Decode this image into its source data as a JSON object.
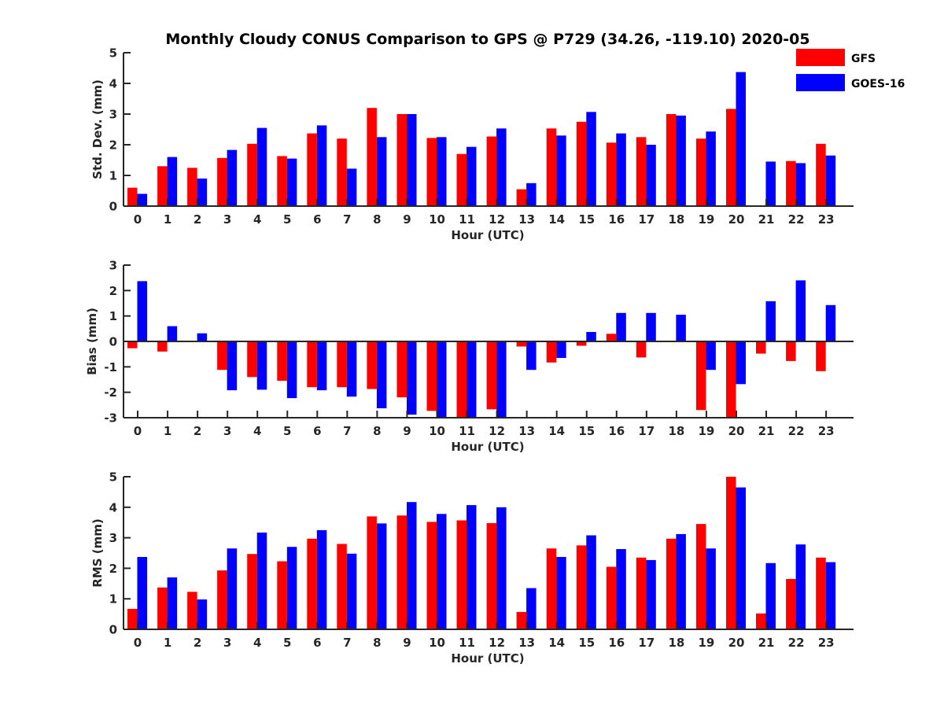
{
  "title": "Monthly Cloudy CONUS Comparison to GPS @ P729 (34.26, -119.10) 2020-05",
  "legend": [
    {
      "name": "GFS",
      "color": "#ff0000"
    },
    {
      "name": "GOES-16",
      "color": "#0000ff"
    }
  ],
  "chart_data": [
    {
      "type": "bar",
      "title": "Monthly Cloudy CONUS Comparison to GPS @ P729 (34.26, -119.10) 2020-05",
      "xlabel": "Hour (UTC)",
      "ylabel": "Std. Dev. (mm)",
      "ylim": [
        0,
        5
      ],
      "yticks": [
        0,
        1,
        2,
        3,
        4,
        5
      ],
      "legend_position": "top-right",
      "categories": [
        "0",
        "1",
        "2",
        "3",
        "4",
        "5",
        "6",
        "7",
        "8",
        "9",
        "10",
        "11",
        "12",
        "13",
        "14",
        "15",
        "16",
        "17",
        "18",
        "19",
        "20",
        "21",
        "22",
        "23"
      ],
      "series": [
        {
          "name": "GFS",
          "color": "#ff0000",
          "values": [
            0.6,
            1.3,
            1.25,
            1.57,
            2.03,
            1.63,
            2.37,
            2.2,
            3.2,
            3.0,
            2.22,
            1.7,
            2.27,
            0.55,
            2.53,
            2.75,
            2.07,
            2.25,
            3.0,
            2.2,
            3.17,
            0.02,
            1.47,
            2.03
          ]
        },
        {
          "name": "GOES-16",
          "color": "#0000ff",
          "values": [
            0.4,
            1.6,
            0.9,
            1.83,
            2.55,
            1.55,
            2.63,
            1.22,
            2.25,
            3.0,
            2.25,
            1.93,
            2.53,
            0.75,
            2.3,
            3.07,
            2.37,
            2.0,
            2.95,
            2.43,
            4.37,
            1.45,
            1.4,
            1.65
          ]
        }
      ]
    },
    {
      "type": "bar",
      "xlabel": "Hour (UTC)",
      "ylabel": "Bias (mm)",
      "ylim": [
        -3,
        3
      ],
      "yticks": [
        -3,
        -2,
        -1,
        0,
        1,
        2,
        3
      ],
      "categories": [
        "0",
        "1",
        "2",
        "3",
        "4",
        "5",
        "6",
        "7",
        "8",
        "9",
        "10",
        "11",
        "12",
        "13",
        "14",
        "15",
        "16",
        "17",
        "18",
        "19",
        "20",
        "21",
        "22",
        "23"
      ],
      "series": [
        {
          "name": "GFS",
          "color": "#ff0000",
          "values": [
            -0.27,
            -0.4,
            -0.03,
            -1.12,
            -1.4,
            -1.55,
            -1.8,
            -1.8,
            -1.87,
            -2.2,
            -2.73,
            -3.0,
            -2.67,
            -0.2,
            -0.83,
            -0.17,
            0.3,
            -0.63,
            -0.03,
            -2.7,
            -3.0,
            -0.48,
            -0.77,
            -1.17
          ]
        },
        {
          "name": "GOES-16",
          "color": "#0000ff",
          "values": [
            2.37,
            0.6,
            0.32,
            -1.92,
            -1.9,
            -2.23,
            -1.92,
            -2.17,
            -2.63,
            -2.88,
            -3.0,
            -3.0,
            -3.0,
            -1.12,
            -0.65,
            0.37,
            1.12,
            1.12,
            1.05,
            -1.12,
            -1.68,
            1.58,
            2.4,
            1.43
          ]
        }
      ]
    },
    {
      "type": "bar",
      "xlabel": "Hour (UTC)",
      "ylabel": "RMS (mm)",
      "ylim": [
        0,
        5
      ],
      "yticks": [
        0,
        1,
        2,
        3,
        4,
        5
      ],
      "categories": [
        "0",
        "1",
        "2",
        "3",
        "4",
        "5",
        "6",
        "7",
        "8",
        "9",
        "10",
        "11",
        "12",
        "13",
        "14",
        "15",
        "16",
        "17",
        "18",
        "19",
        "20",
        "21",
        "22",
        "23"
      ],
      "series": [
        {
          "name": "GFS",
          "color": "#ff0000",
          "values": [
            0.67,
            1.37,
            1.23,
            1.93,
            2.47,
            2.23,
            2.97,
            2.8,
            3.7,
            3.73,
            3.52,
            3.57,
            3.48,
            0.57,
            2.65,
            2.75,
            2.05,
            2.35,
            2.97,
            3.45,
            5.0,
            0.52,
            1.65,
            2.35
          ]
        },
        {
          "name": "GOES-16",
          "color": "#0000ff",
          "values": [
            2.37,
            1.7,
            0.98,
            2.65,
            3.17,
            2.7,
            3.25,
            2.48,
            3.47,
            4.17,
            3.78,
            4.07,
            4.0,
            1.35,
            2.37,
            3.08,
            2.63,
            2.27,
            3.12,
            2.65,
            4.65,
            2.17,
            2.78,
            2.2
          ]
        }
      ]
    }
  ]
}
